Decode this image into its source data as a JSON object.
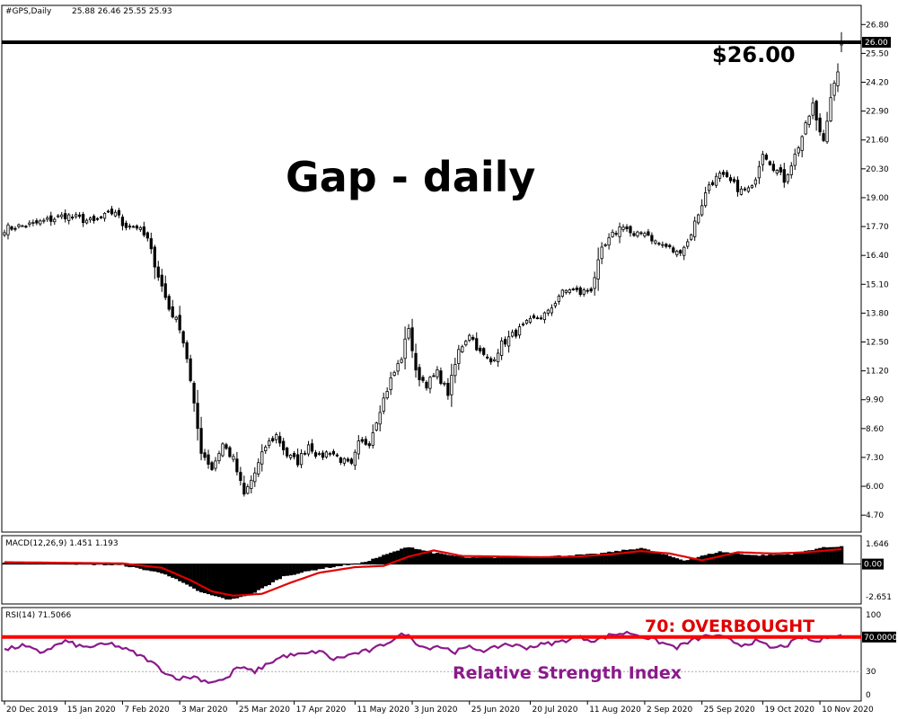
{
  "header": {
    "symbol": "#GPS,Daily",
    "ohlc": "25.88 26.46 25.55 25.93"
  },
  "annotations": {
    "gap_title": "Gap - daily",
    "price_level": "$26.00",
    "overbought": "70: OVERBOUGHT",
    "rsi_caption": "Relative Strength Index"
  },
  "price_tag": "26.00",
  "macd_panel": {
    "label": "MACD(12,26,9) 1.451 1.193",
    "zero_tag": "0.00"
  },
  "rsi_panel": {
    "label": "RSI(14) 71.5066",
    "level_tag": "70.0000"
  },
  "colors": {
    "candle_up": "#ffffff",
    "candle_down": "#000000",
    "candle_outline": "#000000",
    "horizontal_line": "#000000",
    "macd_histogram": "#000000",
    "macd_signal": "#e00000",
    "rsi_line": "#8b1a8b",
    "overbought_line": "#ff0000",
    "oversold_line": "#aaaaaa"
  },
  "chart_data": {
    "type": "candlestick",
    "x_tick_labels": [
      "20 Dec 2019",
      "15 Jan 2020",
      "7 Feb 2020",
      "3 Mar 2020",
      "25 Mar 2020",
      "17 Apr 2020",
      "11 May 2020",
      "3 Jun 2020",
      "25 Jun 2020",
      "20 Jul 2020",
      "11 Aug 2020",
      "2 Sep 2020",
      "25 Sep 2020",
      "19 Oct 2020",
      "10 Nov 2020"
    ],
    "x_tick_index": [
      0,
      17,
      33,
      49,
      65,
      81,
      98,
      114,
      130,
      147,
      163,
      179,
      195,
      212,
      228
    ],
    "candle_count": 235,
    "price_panel": {
      "ylim": [
        4.1,
        27.5
      ],
      "y_ticks": [
        "26.80",
        "25.50",
        "24.20",
        "22.90",
        "21.60",
        "20.30",
        "19.00",
        "17.70",
        "16.40",
        "15.10",
        "13.80",
        "12.50",
        "11.20",
        "9.90",
        "8.60",
        "7.30",
        "6.00",
        "4.70"
      ],
      "horizontal_line": 26.0,
      "close_anchors": [
        [
          0,
          17.6
        ],
        [
          8,
          17.8
        ],
        [
          17,
          18.2
        ],
        [
          25,
          17.9
        ],
        [
          31,
          18.4
        ],
        [
          33,
          17.8
        ],
        [
          37,
          17.7
        ],
        [
          40,
          17.1
        ],
        [
          43,
          15.5
        ],
        [
          46,
          14.0
        ],
        [
          49,
          13.2
        ],
        [
          51,
          11.8
        ],
        [
          53,
          9.6
        ],
        [
          55,
          7.6
        ],
        [
          58,
          6.8
        ],
        [
          61,
          7.9
        ],
        [
          64,
          7.2
        ],
        [
          67,
          5.6
        ],
        [
          70,
          6.6
        ],
        [
          73,
          7.8
        ],
        [
          76,
          8.3
        ],
        [
          79,
          7.4
        ],
        [
          82,
          7.1
        ],
        [
          85,
          7.9
        ],
        [
          88,
          7.3
        ],
        [
          91,
          7.6
        ],
        [
          94,
          7.2
        ],
        [
          97,
          6.9
        ],
        [
          99,
          7.9
        ],
        [
          102,
          8.0
        ],
        [
          105,
          9.5
        ],
        [
          108,
          10.8
        ],
        [
          111,
          11.8
        ],
        [
          113,
          13.2
        ],
        [
          115,
          11.1
        ],
        [
          118,
          10.6
        ],
        [
          121,
          11.1
        ],
        [
          124,
          10.2
        ],
        [
          127,
          12.1
        ],
        [
          130,
          12.9
        ],
        [
          133,
          12.0
        ],
        [
          136,
          11.6
        ],
        [
          139,
          12.4
        ],
        [
          142,
          12.8
        ],
        [
          146,
          13.3
        ],
        [
          149,
          13.6
        ],
        [
          152,
          13.8
        ],
        [
          155,
          14.6
        ],
        [
          158,
          14.9
        ],
        [
          161,
          14.7
        ],
        [
          164,
          14.9
        ],
        [
          167,
          16.6
        ],
        [
          170,
          17.3
        ],
        [
          173,
          17.8
        ],
        [
          176,
          17.2
        ],
        [
          179,
          17.5
        ],
        [
          182,
          17.0
        ],
        [
          185,
          16.8
        ],
        [
          188,
          16.5
        ],
        [
          191,
          17.0
        ],
        [
          194,
          18.3
        ],
        [
          197,
          19.6
        ],
        [
          200,
          20.0
        ],
        [
          203,
          19.7
        ],
        [
          206,
          19.3
        ],
        [
          209,
          19.4
        ],
        [
          212,
          21.1
        ],
        [
          215,
          20.4
        ],
        [
          218,
          19.8
        ],
        [
          221,
          20.9
        ],
        [
          224,
          22.2
        ],
        [
          226,
          23.2
        ],
        [
          227,
          22.4
        ],
        [
          229,
          21.6
        ],
        [
          231,
          23.6
        ],
        [
          233,
          24.5
        ],
        [
          234,
          25.93
        ]
      ]
    },
    "macd_panel": {
      "ylim": [
        -3.0,
        2.0
      ],
      "y_ticks": [
        "1.646",
        "0.00",
        "-2.651"
      ],
      "zero_line": 0.0,
      "signal_anchors": [
        [
          0,
          0.15
        ],
        [
          33,
          0.05
        ],
        [
          44,
          -0.3
        ],
        [
          52,
          -1.3
        ],
        [
          58,
          -2.2
        ],
        [
          64,
          -2.55
        ],
        [
          72,
          -2.4
        ],
        [
          80,
          -1.5
        ],
        [
          88,
          -0.7
        ],
        [
          98,
          -0.25
        ],
        [
          106,
          -0.15
        ],
        [
          113,
          0.6
        ],
        [
          120,
          1.1
        ],
        [
          128,
          0.65
        ],
        [
          140,
          0.6
        ],
        [
          150,
          0.55
        ],
        [
          160,
          0.6
        ],
        [
          170,
          0.8
        ],
        [
          178,
          1.05
        ],
        [
          186,
          0.85
        ],
        [
          195,
          0.3
        ],
        [
          205,
          0.95
        ],
        [
          215,
          0.85
        ],
        [
          224,
          0.95
        ],
        [
          234,
          1.2
        ]
      ],
      "histogram_anchors": [
        [
          0,
          0.12
        ],
        [
          33,
          -0.1
        ],
        [
          45,
          -0.8
        ],
        [
          55,
          -2.3
        ],
        [
          63,
          -2.9
        ],
        [
          70,
          -2.3
        ],
        [
          78,
          -1.0
        ],
        [
          88,
          -0.4
        ],
        [
          100,
          0.1
        ],
        [
          108,
          0.9
        ],
        [
          113,
          1.4
        ],
        [
          120,
          0.9
        ],
        [
          130,
          0.5
        ],
        [
          150,
          0.6
        ],
        [
          165,
          0.8
        ],
        [
          178,
          1.3
        ],
        [
          190,
          0.3
        ],
        [
          200,
          1.0
        ],
        [
          210,
          0.7
        ],
        [
          220,
          0.8
        ],
        [
          228,
          1.3
        ],
        [
          234,
          1.45
        ]
      ]
    },
    "rsi_panel": {
      "ylim": [
        0,
        100
      ],
      "y_ticks": [
        "100",
        "70.0000",
        "30",
        "0"
      ],
      "overbought_level": 70,
      "oversold_level": 30,
      "line_anchors": [
        [
          0,
          55
        ],
        [
          5,
          60
        ],
        [
          10,
          52
        ],
        [
          17,
          65
        ],
        [
          22,
          58
        ],
        [
          30,
          62
        ],
        [
          36,
          52
        ],
        [
          40,
          44
        ],
        [
          43,
          35
        ],
        [
          46,
          26
        ],
        [
          49,
          22
        ],
        [
          53,
          24
        ],
        [
          57,
          18
        ],
        [
          62,
          21
        ],
        [
          65,
          35
        ],
        [
          70,
          30
        ],
        [
          74,
          40
        ],
        [
          78,
          48
        ],
        [
          84,
          50
        ],
        [
          88,
          54
        ],
        [
          92,
          44
        ],
        [
          98,
          51
        ],
        [
          103,
          55
        ],
        [
          108,
          66
        ],
        [
          112,
          74
        ],
        [
          115,
          64
        ],
        [
          118,
          57
        ],
        [
          121,
          60
        ],
        [
          126,
          53
        ],
        [
          130,
          58
        ],
        [
          135,
          54
        ],
        [
          140,
          62
        ],
        [
          146,
          58
        ],
        [
          150,
          61
        ],
        [
          155,
          64
        ],
        [
          160,
          70
        ],
        [
          165,
          66
        ],
        [
          170,
          73
        ],
        [
          175,
          75
        ],
        [
          179,
          70
        ],
        [
          184,
          63
        ],
        [
          188,
          58
        ],
        [
          193,
          67
        ],
        [
          197,
          72
        ],
        [
          201,
          69
        ],
        [
          206,
          61
        ],
        [
          210,
          65
        ],
        [
          215,
          57
        ],
        [
          219,
          61
        ],
        [
          223,
          70
        ],
        [
          227,
          64
        ],
        [
          231,
          72
        ],
        [
          234,
          71.5
        ]
      ]
    }
  }
}
